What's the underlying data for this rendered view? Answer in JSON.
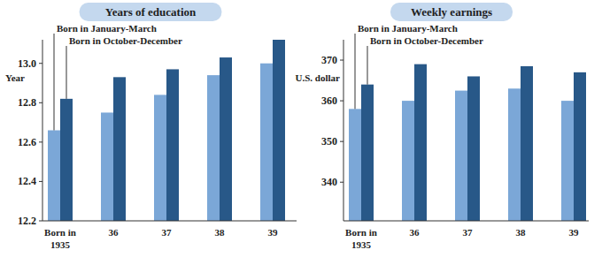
{
  "chart_data": [
    {
      "type": "bar",
      "title": "Years of education",
      "y_label": "Year",
      "categories": [
        "Born in 1935",
        "36",
        "37",
        "38",
        "39"
      ],
      "series": [
        {
          "name": "Born in January-March",
          "color": "#7ba7d7",
          "values": [
            12.66,
            12.75,
            12.84,
            12.94,
            13.0
          ]
        },
        {
          "name": "Born in October-December",
          "color": "#285888",
          "values": [
            12.82,
            12.93,
            12.97,
            13.03,
            13.12
          ]
        }
      ],
      "ylim": [
        12.2,
        13.12
      ],
      "yticks": [
        12.2,
        12.4,
        12.6,
        12.8,
        {
          "value": 13,
          "label": "13.0"
        }
      ],
      "legend": "top-left"
    },
    {
      "type": "bar",
      "title": "Weekly earnings",
      "y_label": "U.S. dollar",
      "categories": [
        "Born in 1935",
        "36",
        "37",
        "38",
        "39"
      ],
      "series": [
        {
          "name": "Born in January-March",
          "color": "#7ba7d7",
          "values": [
            358,
            360,
            362.5,
            363,
            360
          ]
        },
        {
          "name": "Born in October-December",
          "color": "#285888",
          "values": [
            364,
            369,
            366,
            368.5,
            367
          ]
        }
      ],
      "ylim": [
        330.5,
        375
      ],
      "yticks": [
        340,
        350,
        360,
        370
      ],
      "legend": "top-left"
    }
  ]
}
